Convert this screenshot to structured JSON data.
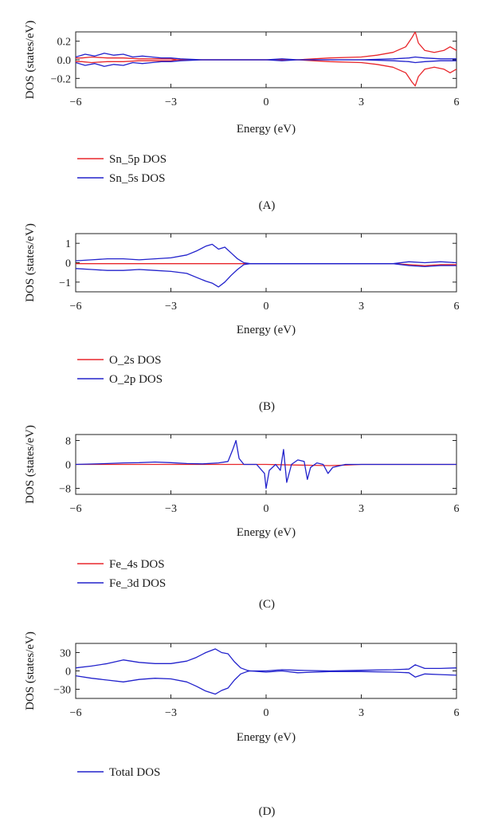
{
  "figure": {
    "panels": [
      {
        "caption": "(A)",
        "ylabel": "DOS (states/eV)",
        "xlabel": "Energy (eV)",
        "legend": [
          {
            "label": "Sn_5p DOS",
            "color": "#e8262b"
          },
          {
            "label": "Sn_5s DOS",
            "color": "#2222cc"
          }
        ]
      },
      {
        "caption": "(B)",
        "ylabel": "DOS (states/eV)",
        "xlabel": "Energy (eV)",
        "legend": [
          {
            "label": "O_2s DOS",
            "color": "#e8262b"
          },
          {
            "label": "O_2p DOS",
            "color": "#2222cc"
          }
        ]
      },
      {
        "caption": "(C)",
        "ylabel": "DOS (states/eV)",
        "xlabel": "Energy (eV)",
        "legend": [
          {
            "label": "Fe_4s DOS",
            "color": "#e8262b"
          },
          {
            "label": "Fe_3d DOS",
            "color": "#2222cc"
          }
        ]
      },
      {
        "caption": "(D)",
        "ylabel": "DOS (states/eV)",
        "xlabel": "Energy (eV)",
        "legend": [
          {
            "label": "Total DOS",
            "color": "#2222cc"
          }
        ]
      }
    ]
  },
  "chart_data": [
    {
      "type": "line",
      "title": "",
      "caption": "(A)",
      "xlabel": "Energy (eV)",
      "ylabel": "DOS (states/eV)",
      "xlim": [
        -6,
        6
      ],
      "ylim": [
        -0.3,
        0.3
      ],
      "xticks": [
        -6,
        -3,
        0,
        3,
        6
      ],
      "yticks": [
        0.2,
        0.0,
        -0.2
      ],
      "ytick_labels": [
        "0.2",
        "0.0",
        "−0.2"
      ],
      "grid": false,
      "legend_position": "below",
      "series": [
        {
          "name": "Sn_5p DOS",
          "color": "#e8262b",
          "x": [
            -6,
            -5.8,
            -5.5,
            -5,
            -4.5,
            -4,
            -3.5,
            -3,
            -2.8,
            -2,
            -1,
            0,
            1,
            1.5,
            2,
            3,
            3.5,
            4,
            4.4,
            4.6,
            4.7,
            4.8,
            5,
            5.3,
            5.6,
            5.8,
            6
          ],
          "y": [
            0.02,
            0.02,
            0.03,
            0.02,
            0.02,
            0.01,
            0.01,
            0.01,
            0.0,
            0.0,
            0.0,
            0.0,
            0.0,
            0.01,
            0.02,
            0.03,
            0.05,
            0.08,
            0.14,
            0.24,
            0.3,
            0.18,
            0.1,
            0.08,
            0.1,
            0.14,
            0.1
          ]
        },
        {
          "name": "Sn_5p DOS",
          "color": "#e8262b",
          "x": [
            -6,
            -5.8,
            -5.5,
            -5,
            -4.5,
            -4,
            -3.5,
            -3,
            -2.8,
            -2,
            -1,
            0,
            1,
            1.5,
            2,
            3,
            3.5,
            4,
            4.4,
            4.6,
            4.7,
            4.8,
            5,
            5.3,
            5.6,
            5.8,
            6
          ],
          "y": [
            -0.02,
            -0.02,
            -0.03,
            -0.02,
            -0.02,
            -0.01,
            -0.01,
            -0.01,
            0.0,
            0.0,
            0.0,
            0.0,
            0.0,
            -0.01,
            -0.02,
            -0.03,
            -0.05,
            -0.08,
            -0.14,
            -0.24,
            -0.28,
            -0.18,
            -0.1,
            -0.08,
            -0.1,
            -0.14,
            -0.1
          ]
        },
        {
          "name": "Sn_5s DOS",
          "color": "#2222cc",
          "x": [
            -6,
            -5.7,
            -5.4,
            -5.1,
            -4.8,
            -4.5,
            -4.2,
            -3.9,
            -3.6,
            -3.3,
            -3,
            -2.7,
            -2,
            -1,
            0,
            0.5,
            1,
            2,
            3,
            4,
            4.5,
            4.7,
            5,
            5.5,
            6
          ],
          "y": [
            0.03,
            0.06,
            0.04,
            0.07,
            0.05,
            0.06,
            0.03,
            0.04,
            0.03,
            0.02,
            0.02,
            0.01,
            0.0,
            0.0,
            0.0,
            0.01,
            0.0,
            0.0,
            0.0,
            0.01,
            0.02,
            0.03,
            0.02,
            0.01,
            0.01
          ]
        },
        {
          "name": "Sn_5s DOS",
          "color": "#2222cc",
          "x": [
            -6,
            -5.7,
            -5.4,
            -5.1,
            -4.8,
            -4.5,
            -4.2,
            -3.9,
            -3.6,
            -3.3,
            -3,
            -2.7,
            -2,
            -1,
            0,
            0.5,
            1,
            2,
            3,
            4,
            4.5,
            4.7,
            5,
            5.5,
            6
          ],
          "y": [
            -0.03,
            -0.06,
            -0.04,
            -0.07,
            -0.05,
            -0.06,
            -0.03,
            -0.04,
            -0.03,
            -0.02,
            -0.02,
            -0.01,
            0.0,
            0.0,
            0.0,
            -0.01,
            0.0,
            0.0,
            0.0,
            -0.01,
            -0.02,
            -0.03,
            -0.02,
            -0.01,
            -0.01
          ]
        }
      ]
    },
    {
      "type": "line",
      "title": "",
      "caption": "(B)",
      "xlabel": "Energy (eV)",
      "ylabel": "DOS (states/eV)",
      "xlim": [
        -6,
        6
      ],
      "ylim": [
        -1.5,
        1.5
      ],
      "xticks": [
        -6,
        -3,
        0,
        3,
        6
      ],
      "yticks": [
        1,
        0,
        -1
      ],
      "ytick_labels": [
        "1",
        "0",
        "−1"
      ],
      "grid": false,
      "legend_position": "below",
      "series": [
        {
          "name": "O_2s DOS",
          "color": "#e8262b",
          "x": [
            -6,
            0,
            4,
            4.5,
            5,
            5.5,
            6
          ],
          "y": [
            -0.05,
            -0.05,
            -0.05,
            -0.1,
            -0.15,
            -0.1,
            -0.1
          ]
        },
        {
          "name": "O_2p DOS",
          "color": "#2222cc",
          "x": [
            -6,
            -5.5,
            -5,
            -4.5,
            -4,
            -3.5,
            -3,
            -2.5,
            -2.2,
            -1.9,
            -1.7,
            -1.5,
            -1.3,
            -1.1,
            -0.9,
            -0.7,
            -0.5,
            0,
            2,
            4,
            4.5,
            5,
            5.5,
            6
          ],
          "y": [
            0.1,
            0.15,
            0.2,
            0.2,
            0.15,
            0.2,
            0.25,
            0.4,
            0.6,
            0.85,
            0.95,
            0.7,
            0.8,
            0.5,
            0.2,
            0.0,
            -0.05,
            -0.05,
            -0.05,
            -0.05,
            0.05,
            0.0,
            0.05,
            0.0
          ]
        },
        {
          "name": "O_2p DOS",
          "color": "#2222cc",
          "x": [
            -6,
            -5.5,
            -5,
            -4.5,
            -4,
            -3.5,
            -3,
            -2.5,
            -2.2,
            -1.9,
            -1.7,
            -1.5,
            -1.3,
            -1.1,
            -0.9,
            -0.7,
            -0.5,
            0,
            2,
            4,
            4.5,
            5,
            5.5,
            6
          ],
          "y": [
            -0.3,
            -0.35,
            -0.4,
            -0.4,
            -0.35,
            -0.4,
            -0.45,
            -0.55,
            -0.75,
            -0.95,
            -1.05,
            -1.25,
            -1.0,
            -0.65,
            -0.35,
            -0.1,
            -0.05,
            -0.05,
            -0.05,
            -0.05,
            -0.15,
            -0.2,
            -0.15,
            -0.15
          ]
        }
      ]
    },
    {
      "type": "line",
      "title": "",
      "caption": "(C)",
      "xlabel": "Energy (eV)",
      "ylabel": "DOS (states/eV)",
      "xlim": [
        -6,
        6
      ],
      "ylim": [
        -10,
        10
      ],
      "xticks": [
        -6,
        -3,
        0,
        3,
        6
      ],
      "yticks": [
        8,
        0,
        -8
      ],
      "ytick_labels": [
        "8",
        "0",
        "−8"
      ],
      "grid": false,
      "legend_position": "below",
      "series": [
        {
          "name": "Fe_4s DOS",
          "color": "#e8262b",
          "x": [
            -6,
            -3,
            0,
            1,
            1.5,
            2,
            2.5,
            3,
            6
          ],
          "y": [
            0,
            0,
            0,
            -0.2,
            -0.3,
            -0.4,
            -0.2,
            0,
            0
          ]
        },
        {
          "name": "Fe_3d DOS",
          "color": "#2222cc",
          "x": [
            -6,
            -5,
            -4.5,
            -4,
            -3.5,
            -3,
            -2.5,
            -2,
            -1.5,
            -1.2,
            -1.05,
            -0.95,
            -0.85,
            -0.7,
            -0.3,
            -0.05,
            0.0,
            0.1,
            0.3,
            0.45,
            0.55,
            0.65,
            0.8,
            1.0,
            1.2,
            1.3,
            1.4,
            1.6,
            1.8,
            1.95,
            2.1,
            2.3,
            2.5,
            3,
            6
          ],
          "y": [
            0,
            0.3,
            0.5,
            0.6,
            0.8,
            0.6,
            0.3,
            0.2,
            0.5,
            1.0,
            5.0,
            8.0,
            2.0,
            0.0,
            0.0,
            -3.0,
            -8.0,
            -2.0,
            0.0,
            -2.0,
            5.0,
            -6.0,
            0.0,
            1.5,
            1.0,
            -5.0,
            -1.0,
            0.5,
            0.0,
            -3.0,
            -1.0,
            -0.5,
            0.0,
            0.0,
            0.0
          ]
        }
      ]
    },
    {
      "type": "line",
      "title": "",
      "caption": "(D)",
      "xlabel": "Energy (eV)",
      "ylabel": "DOS (states/eV)",
      "xlim": [
        -6,
        6
      ],
      "ylim": [
        -45,
        45
      ],
      "xticks": [
        -6,
        -3,
        0,
        3,
        6
      ],
      "yticks": [
        30,
        0,
        -30
      ],
      "ytick_labels": [
        "30",
        "0",
        "−30"
      ],
      "grid": false,
      "legend_position": "below",
      "series": [
        {
          "name": "Total DOS",
          "color": "#2222cc",
          "x": [
            -6,
            -5.5,
            -5,
            -4.5,
            -4,
            -3.5,
            -3,
            -2.5,
            -2.2,
            -1.9,
            -1.6,
            -1.4,
            -1.2,
            -1,
            -0.8,
            -0.6,
            -0.5,
            0,
            0.5,
            1,
            2,
            3,
            4,
            4.5,
            4.7,
            5,
            5.5,
            6
          ],
          "y": [
            5,
            8,
            12,
            18,
            14,
            12,
            12,
            16,
            22,
            30,
            36,
            30,
            28,
            15,
            5,
            1,
            0,
            0,
            2,
            1,
            0,
            1,
            2,
            3,
            10,
            4,
            4,
            5
          ]
        },
        {
          "name": "Total DOS",
          "color": "#2222cc",
          "x": [
            -6,
            -5.5,
            -5,
            -4.5,
            -4,
            -3.5,
            -3,
            -2.5,
            -2.2,
            -1.9,
            -1.6,
            -1.4,
            -1.2,
            -1,
            -0.8,
            -0.6,
            -0.5,
            0,
            0.5,
            1,
            2,
            3,
            4,
            4.5,
            4.7,
            5,
            5.5,
            6
          ],
          "y": [
            -8,
            -12,
            -15,
            -18,
            -14,
            -12,
            -13,
            -18,
            -25,
            -33,
            -38,
            -32,
            -28,
            -15,
            -5,
            -1,
            0,
            -2,
            0,
            -3,
            -1,
            -1,
            -2,
            -3,
            -10,
            -5,
            -6,
            -7
          ]
        }
      ]
    }
  ]
}
